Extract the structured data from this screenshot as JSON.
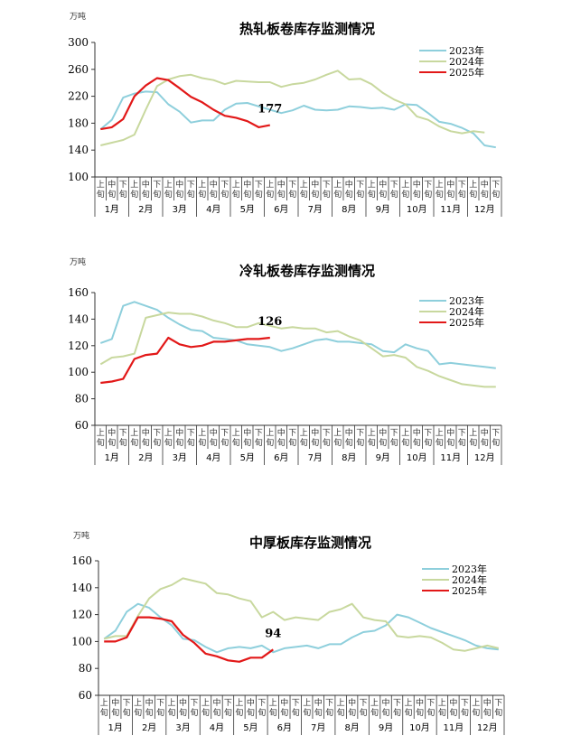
{
  "chart_data": [
    {
      "type": "line",
      "title": "热轧板卷库存监测情况",
      "unit": "万吨",
      "ylim": [
        100,
        300
      ],
      "yticks": [
        100,
        140,
        180,
        220,
        260,
        300
      ],
      "months": [
        "1月",
        "2月",
        "3月",
        "4月",
        "5月",
        "6月",
        "7月",
        "8月",
        "9月",
        "10月",
        "11月",
        "12月"
      ],
      "subperiods": [
        "上旬",
        "中旬",
        "下旬"
      ],
      "legend_position": "top-right",
      "annotation": "177",
      "series": [
        {
          "name": "2023年",
          "color": "#8ecfdc",
          "values": [
            171,
            185,
            218,
            224,
            227,
            226,
            208,
            197,
            181,
            184,
            184,
            200,
            209,
            210,
            205,
            200,
            195,
            199,
            206,
            200,
            199,
            200,
            205,
            204,
            202,
            203,
            200,
            208,
            207,
            195,
            182,
            179,
            173,
            165,
            147,
            144
          ]
        },
        {
          "name": "2024年",
          "color": "#c8d89e",
          "values": [
            147,
            151,
            155,
            163,
            200,
            235,
            245,
            250,
            252,
            247,
            244,
            238,
            243,
            242,
            241,
            241,
            234,
            238,
            240,
            245,
            252,
            258,
            245,
            246,
            238,
            225,
            215,
            208,
            190,
            185,
            175,
            168,
            165,
            168,
            166,
            null
          ]
        },
        {
          "name": "2025年",
          "color": "#e21818",
          "values": [
            171,
            174,
            186,
            220,
            236,
            247,
            244,
            232,
            219,
            211,
            200,
            191,
            188,
            183,
            174,
            177,
            null,
            null,
            null,
            null,
            null,
            null,
            null,
            null,
            null,
            null,
            null,
            null,
            null,
            null,
            null,
            null,
            null,
            null,
            null,
            null
          ]
        }
      ]
    },
    {
      "type": "line",
      "title": "冷轧板卷库存监测情况",
      "unit": "万吨",
      "ylim": [
        60,
        160
      ],
      "yticks": [
        60,
        80,
        100,
        120,
        140,
        160
      ],
      "months": [
        "1月",
        "2月",
        "3月",
        "4月",
        "5月",
        "6月",
        "7月",
        "8月",
        "9月",
        "10月",
        "11月",
        "12月"
      ],
      "subperiods": [
        "上旬",
        "中旬",
        "下旬"
      ],
      "legend_position": "top-right",
      "annotation": "126",
      "series": [
        {
          "name": "2023年",
          "color": "#8ecfdc",
          "values": [
            122,
            125,
            150,
            153,
            150,
            147,
            141,
            136,
            132,
            131,
            126,
            125,
            124,
            121,
            120,
            119,
            116,
            118,
            121,
            124,
            125,
            123,
            123,
            122,
            121,
            116,
            115,
            121,
            118,
            116,
            106,
            107,
            106,
            105,
            104,
            103
          ]
        },
        {
          "name": "2024年",
          "color": "#c8d89e",
          "values": [
            106,
            111,
            112,
            114,
            141,
            143,
            145,
            144,
            144,
            142,
            139,
            137,
            134,
            134,
            137,
            135,
            133,
            134,
            133,
            133,
            130,
            131,
            127,
            124,
            118,
            112,
            113,
            111,
            104,
            101,
            97,
            94,
            91,
            90,
            89,
            89
          ]
        },
        {
          "name": "2025年",
          "color": "#e21818",
          "values": [
            92,
            93,
            95,
            110,
            113,
            114,
            126,
            121,
            119,
            120,
            123,
            123,
            124,
            125,
            125,
            126,
            null,
            null,
            null,
            null,
            null,
            null,
            null,
            null,
            null,
            null,
            null,
            null,
            null,
            null,
            null,
            null,
            null,
            null,
            null,
            null
          ]
        }
      ]
    },
    {
      "type": "line",
      "title": "中厚板库存监测情况",
      "unit": "万吨",
      "ylim": [
        60,
        160
      ],
      "yticks": [
        60,
        80,
        100,
        120,
        140,
        160
      ],
      "months": [
        "1月",
        "2月",
        "3月",
        "4月",
        "5月",
        "6月",
        "7月",
        "8月",
        "9月",
        "10月",
        "11月",
        "12月"
      ],
      "subperiods": [
        "上旬",
        "中旬",
        "下旬"
      ],
      "legend_position": "top-right",
      "annotation": "94",
      "series": [
        {
          "name": "2023年",
          "color": "#8ecfdc",
          "values": [
            102,
            108,
            122,
            128,
            125,
            118,
            112,
            102,
            101,
            96,
            92,
            95,
            96,
            95,
            97,
            92,
            95,
            96,
            97,
            95,
            98,
            98,
            103,
            107,
            108,
            112,
            120,
            118,
            114,
            110,
            107,
            104,
            101,
            97,
            95,
            94
          ]
        },
        {
          "name": "2024年",
          "color": "#c8d89e",
          "values": [
            102,
            104,
            104,
            119,
            132,
            139,
            142,
            147,
            145,
            143,
            136,
            135,
            132,
            130,
            118,
            122,
            116,
            118,
            117,
            116,
            122,
            124,
            128,
            118,
            116,
            115,
            104,
            103,
            104,
            103,
            99,
            94,
            93,
            95,
            97,
            95
          ]
        },
        {
          "name": "2025年",
          "color": "#e21818",
          "values": [
            100,
            100,
            103,
            118,
            118,
            117,
            115,
            105,
            99,
            91,
            89,
            86,
            85,
            88,
            88,
            94,
            null,
            null,
            null,
            null,
            null,
            null,
            null,
            null,
            null,
            null,
            null,
            null,
            null,
            null,
            null,
            null,
            null,
            null,
            null,
            null
          ]
        }
      ]
    }
  ]
}
